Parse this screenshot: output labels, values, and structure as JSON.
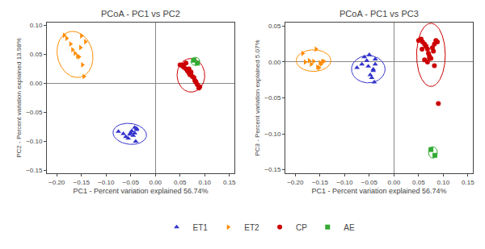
{
  "chart_data": [
    {
      "type": "scatter",
      "title": "PCoA - PC1 vs PC2",
      "xlabel": "PC1 - Percent variation explained 56.74%",
      "ylabel": "PC2 - Percent variation explained 13.98%",
      "xlim": [
        -0.22,
        0.16
      ],
      "ylim": [
        -0.155,
        0.105
      ],
      "xticks": [
        {
          "value": -0.2,
          "label": "−0.20"
        },
        {
          "value": -0.15,
          "label": "−0.15"
        },
        {
          "value": -0.1,
          "label": "−0.10"
        },
        {
          "value": -0.05,
          "label": "−0.05"
        },
        {
          "value": 0.0,
          "label": "0.00"
        },
        {
          "value": 0.05,
          "label": "0.05"
        },
        {
          "value": 0.1,
          "label": "0.10"
        },
        {
          "value": 0.15,
          "label": "0.15"
        }
      ],
      "yticks": [
        {
          "value": -0.15,
          "label": "−0.15"
        },
        {
          "value": -0.1,
          "label": "−0.10"
        },
        {
          "value": -0.05,
          "label": "−0.05"
        },
        {
          "value": 0.0,
          "label": "0.00"
        },
        {
          "value": 0.05,
          "label": "0.05"
        },
        {
          "value": 0.1,
          "label": "0.10"
        }
      ],
      "grid": false,
      "legend": "bottom",
      "series": [
        {
          "name": "ET1",
          "color": "#3333cc",
          "marker": "triangle-up",
          "x": [
            -0.075,
            -0.065,
            -0.06,
            -0.055,
            -0.052,
            -0.05,
            -0.048,
            -0.045,
            -0.042,
            -0.04,
            -0.038,
            -0.038,
            -0.042
          ],
          "y": [
            -0.083,
            -0.087,
            -0.092,
            -0.095,
            -0.088,
            -0.085,
            -0.082,
            -0.09,
            -0.086,
            -0.1,
            -0.08,
            -0.078,
            -0.076
          ],
          "ellipse": {
            "cx": -0.052,
            "cy": -0.087,
            "w": 0.068,
            "h": 0.036,
            "angle": -5
          }
        },
        {
          "name": "ET2",
          "color": "#ff8c00",
          "marker": "triangle-right",
          "x": [
            -0.185,
            -0.18,
            -0.172,
            -0.168,
            -0.163,
            -0.158,
            -0.155,
            -0.152,
            -0.148,
            -0.145,
            -0.142,
            -0.15
          ],
          "y": [
            0.083,
            0.078,
            0.068,
            0.058,
            0.052,
            0.047,
            0.046,
            0.062,
            0.032,
            0.012,
            0.072,
            0.082
          ],
          "ellipse": {
            "cx": -0.163,
            "cy": 0.05,
            "w": 0.07,
            "h": 0.082,
            "angle": 28
          }
        },
        {
          "name": "CP",
          "color": "#cc0000",
          "marker": "circle",
          "x": [
            0.05,
            0.055,
            0.058,
            0.062,
            0.065,
            0.068,
            0.07,
            0.072,
            0.075,
            0.078,
            0.08,
            0.082,
            0.085,
            0.088,
            0.062,
            0.068,
            0.072,
            0.057,
            0.065,
            0.082,
            0.09
          ],
          "y": [
            0.032,
            0.03,
            0.028,
            0.025,
            0.022,
            0.018,
            0.015,
            0.02,
            0.012,
            0.01,
            0.005,
            0.002,
            -0.002,
            -0.008,
            0.035,
            0.025,
            0.018,
            0.032,
            0.022,
            0.003,
            -0.006
          ],
          "ellipse": {
            "cx": 0.072,
            "cy": 0.014,
            "w": 0.056,
            "h": 0.058,
            "angle": 15
          }
        },
        {
          "name": "AE",
          "color": "#33aa33",
          "marker": "square",
          "x": [
            0.078,
            0.085
          ],
          "y": [
            0.04,
            0.035
          ],
          "ellipse": {
            "cx": 0.081,
            "cy": 0.038,
            "w": 0.018,
            "h": 0.014,
            "angle": 0
          }
        }
      ]
    },
    {
      "type": "scatter",
      "title": "PCoA - PC1 vs PC3",
      "xlabel": "PC1 - Percent variation explained 56.74%",
      "ylabel": "PC3 - Percent variation explained 5.07%",
      "xlim": [
        -0.22,
        0.16
      ],
      "ylim": [
        -0.155,
        0.055
      ],
      "xticks": [
        {
          "value": -0.2,
          "label": "−0.20"
        },
        {
          "value": -0.15,
          "label": "−0.15"
        },
        {
          "value": -0.1,
          "label": "−0.10"
        },
        {
          "value": -0.05,
          "label": "−0.05"
        },
        {
          "value": 0.0,
          "label": "0.00"
        },
        {
          "value": 0.05,
          "label": "0.05"
        },
        {
          "value": 0.1,
          "label": "0.10"
        },
        {
          "value": 0.15,
          "label": "0.15"
        }
      ],
      "yticks": [
        {
          "value": -0.15,
          "label": "−0.15"
        },
        {
          "value": -0.1,
          "label": "−0.10"
        },
        {
          "value": -0.05,
          "label": "−0.05"
        },
        {
          "value": 0.0,
          "label": "0.00"
        },
        {
          "value": 0.05,
          "label": "0.05"
        }
      ],
      "grid": false,
      "legend": "bottom",
      "series": [
        {
          "name": "ET1",
          "color": "#3333cc",
          "marker": "triangle-up",
          "x": [
            -0.075,
            -0.065,
            -0.06,
            -0.055,
            -0.052,
            -0.05,
            -0.048,
            -0.045,
            -0.042,
            -0.04,
            -0.038,
            -0.038,
            -0.042
          ],
          "y": [
            -0.008,
            -0.003,
            0.007,
            0.002,
            -0.006,
            0.01,
            -0.018,
            -0.022,
            -0.012,
            -0.028,
            0.004,
            -0.003,
            -0.01
          ],
          "ellipse": {
            "cx": -0.052,
            "cy": -0.01,
            "w": 0.068,
            "h": 0.038,
            "angle": 0
          }
        },
        {
          "name": "ET2",
          "color": "#ff8c00",
          "marker": "triangle-right",
          "x": [
            -0.185,
            -0.18,
            -0.172,
            -0.168,
            -0.163,
            -0.158,
            -0.155,
            -0.152,
            -0.148,
            -0.145,
            -0.142,
            -0.15
          ],
          "y": [
            0.012,
            0.0,
            0.002,
            -0.003,
            0.001,
            0.018,
            -0.007,
            -0.008,
            -0.003,
            0.001,
            0.001,
            -0.001
          ],
          "ellipse": {
            "cx": -0.163,
            "cy": 0.002,
            "w": 0.07,
            "h": 0.03,
            "angle": 0
          }
        },
        {
          "name": "CP",
          "color": "#cc0000",
          "marker": "circle",
          "x": [
            0.05,
            0.055,
            0.058,
            0.062,
            0.065,
            0.068,
            0.07,
            0.072,
            0.075,
            0.078,
            0.08,
            0.082,
            0.085,
            0.088,
            0.062,
            0.068,
            0.072,
            0.057,
            0.065,
            0.082,
            0.09
          ],
          "y": [
            0.03,
            0.032,
            0.028,
            0.025,
            0.022,
            0.018,
            0.012,
            0.008,
            0.005,
            0.02,
            0.015,
            0.025,
            0.03,
            0.028,
            0.003,
            0.0,
            0.005,
            0.018,
            0.022,
            -0.005,
            -0.058
          ],
          "ellipse": {
            "cx": 0.075,
            "cy": 0.01,
            "w": 0.058,
            "h": 0.088,
            "angle": 0
          }
        },
        {
          "name": "AE",
          "color": "#33aa33",
          "marker": "square",
          "x": [
            0.075,
            0.083
          ],
          "y": [
            -0.122,
            -0.13
          ],
          "ellipse": {
            "cx": 0.079,
            "cy": -0.126,
            "w": 0.018,
            "h": 0.016,
            "angle": 0
          }
        }
      ]
    }
  ]
}
